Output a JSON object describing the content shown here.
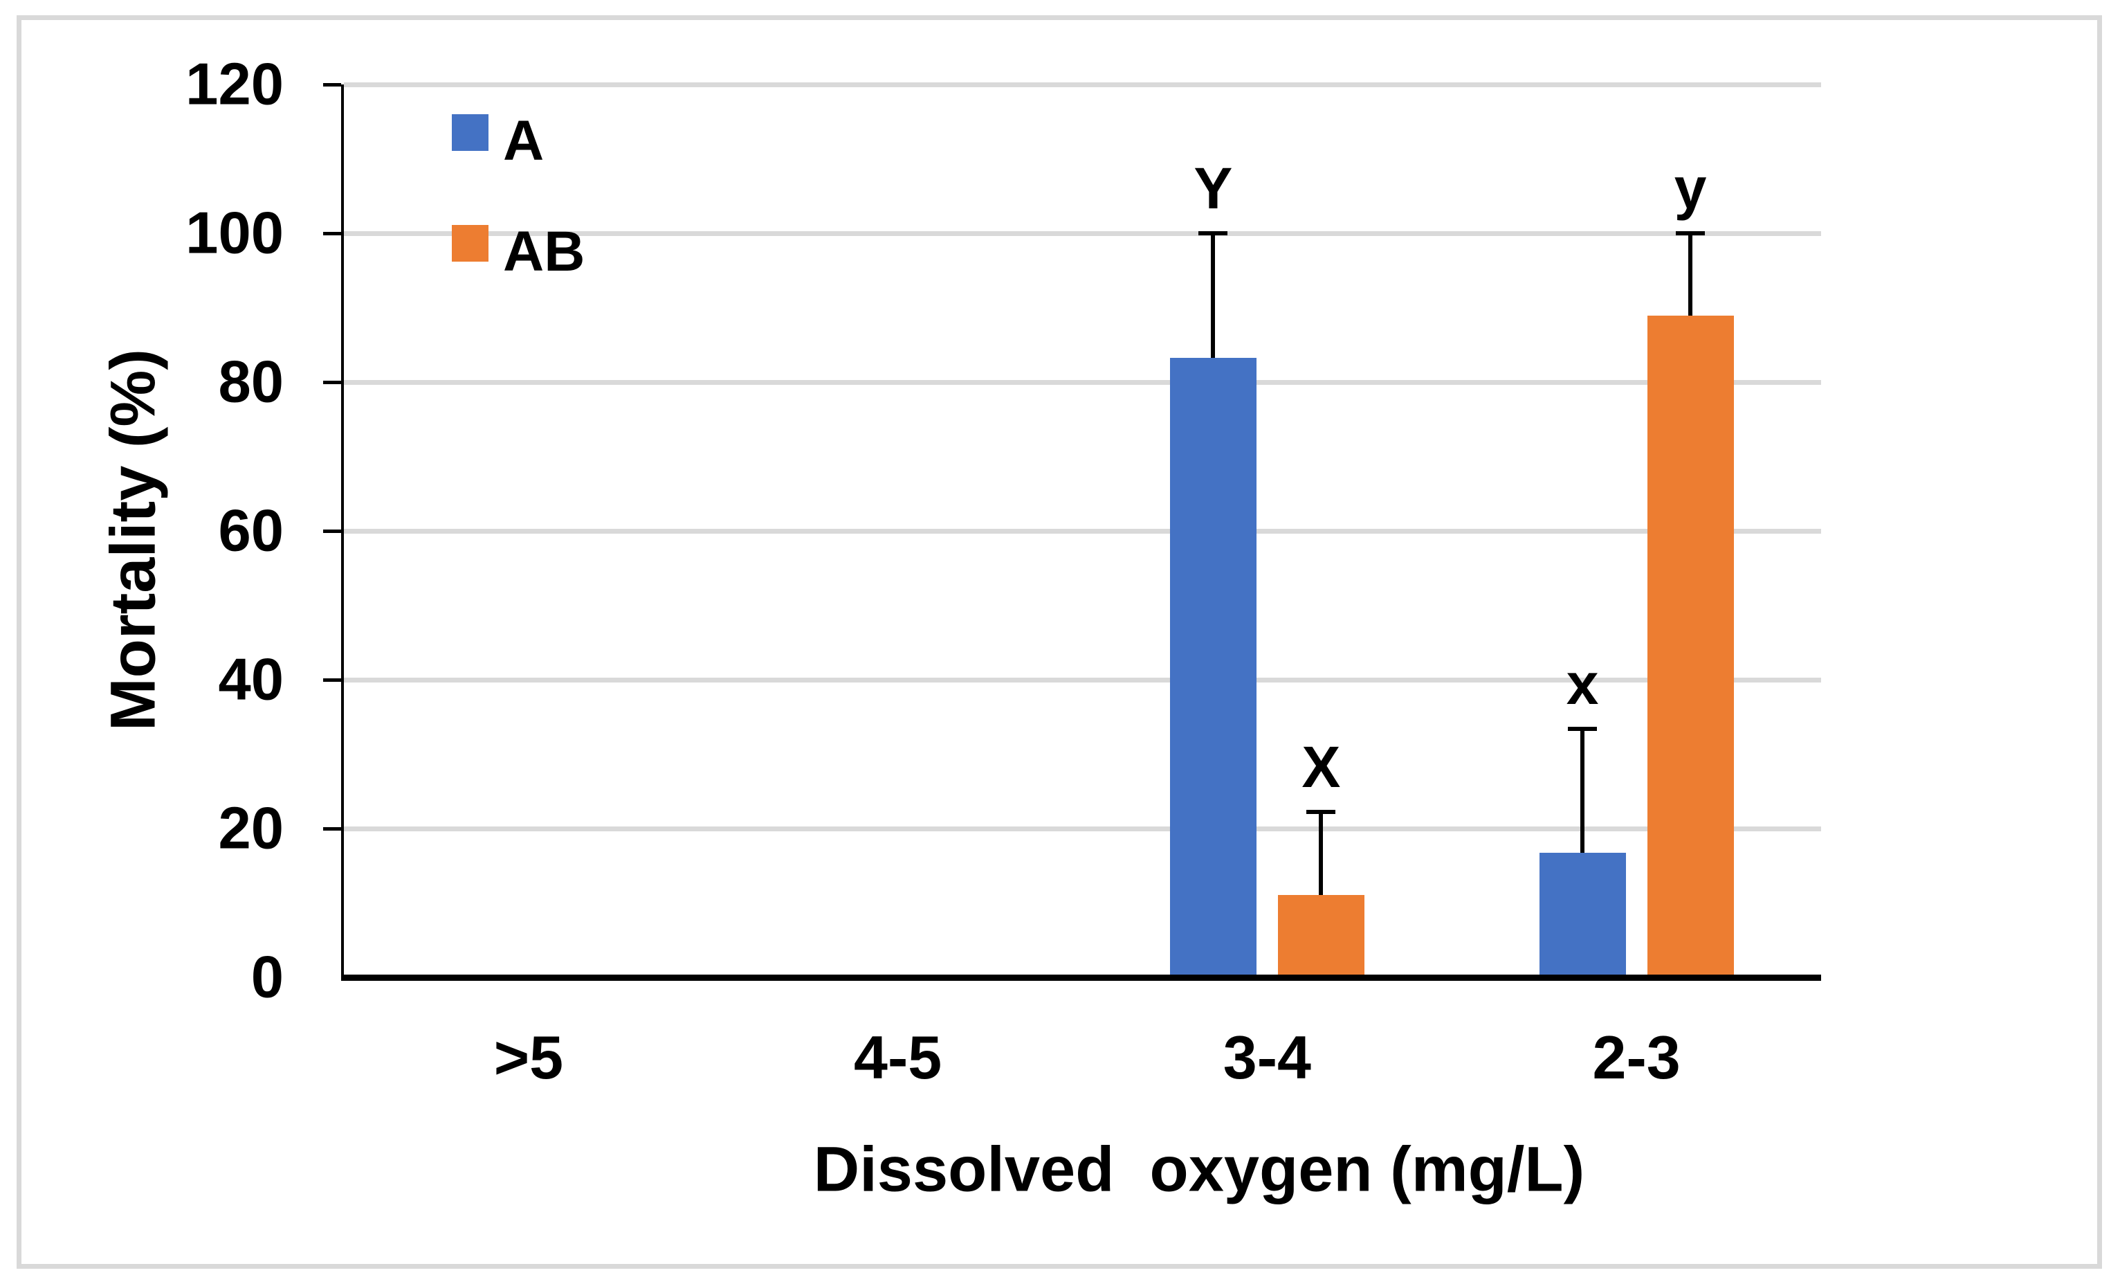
{
  "figure": {
    "background": "#ffffff",
    "border_color": "#d9d9d9"
  },
  "chart_data": {
    "type": "bar",
    "title": "",
    "categories": [
      ">5",
      "4-5",
      "3-4",
      "2-3"
    ],
    "series": [
      {
        "name": "A",
        "color": "#4472c4",
        "values": [
          0,
          0,
          83.3,
          16.7
        ],
        "error_plus": [
          0,
          0,
          16.7,
          16.7
        ],
        "sig_letters": [
          "",
          "",
          "Y",
          "x"
        ]
      },
      {
        "name": "AB",
        "color": "#ed7d31",
        "values": [
          0,
          0,
          11.1,
          88.9
        ],
        "error_plus": [
          0,
          0,
          11.1,
          11.1
        ],
        "sig_letters": [
          "",
          "",
          "X",
          "y"
        ]
      }
    ],
    "xlabel": "Dissolved  oxygen (mg/L)",
    "ylabel": "Mortality (%)",
    "ylim": [
      0,
      120
    ],
    "yticks": [
      0,
      20,
      40,
      60,
      80,
      100,
      120
    ],
    "grid": "horizontal",
    "gridline_color": "#d9d9d9",
    "axis_color": "#000000",
    "error_bar_color": "#000000",
    "legend_position": "top-left-inside"
  }
}
